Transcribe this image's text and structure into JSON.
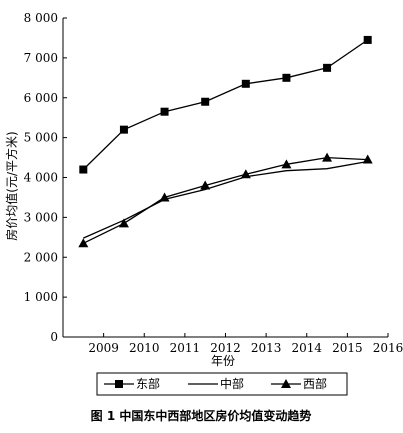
{
  "chart_data": {
    "type": "line",
    "title": "",
    "caption": "图 1   中国东中西部地区房价均值变动趋势",
    "xlabel": "年份",
    "ylabel": "房价均值(元/平方米)",
    "x_ticks": [
      2009,
      2010,
      2011,
      2012,
      2013,
      2014,
      2015,
      2016
    ],
    "xlim": [
      2008,
      2016
    ],
    "y_ticks": [
      "0",
      "1 000",
      "2 000",
      "3 000",
      "4 000",
      "5 000",
      "6 000",
      "7 000",
      "8 000"
    ],
    "y_tick_values": [
      0,
      1000,
      2000,
      3000,
      4000,
      5000,
      6000,
      7000,
      8000
    ],
    "ylim": [
      0,
      8000
    ],
    "grid": false,
    "legend_position": "bottom",
    "x": [
      2008.5,
      2009.5,
      2010.5,
      2011.5,
      2012.5,
      2013.5,
      2014.5,
      2015.5
    ],
    "series": [
      {
        "name": "东部",
        "marker": "square",
        "values": [
          4200,
          5200,
          5650,
          5900,
          6350,
          6500,
          6750,
          7450
        ]
      },
      {
        "name": "中部",
        "marker": "none",
        "values": [
          2480,
          2930,
          3450,
          3700,
          4020,
          4170,
          4220,
          4400
        ]
      },
      {
        "name": "西部",
        "marker": "triangle",
        "values": [
          2350,
          2850,
          3500,
          3800,
          4080,
          4330,
          4500,
          4450
        ]
      }
    ],
    "line_color": "#000000"
  }
}
